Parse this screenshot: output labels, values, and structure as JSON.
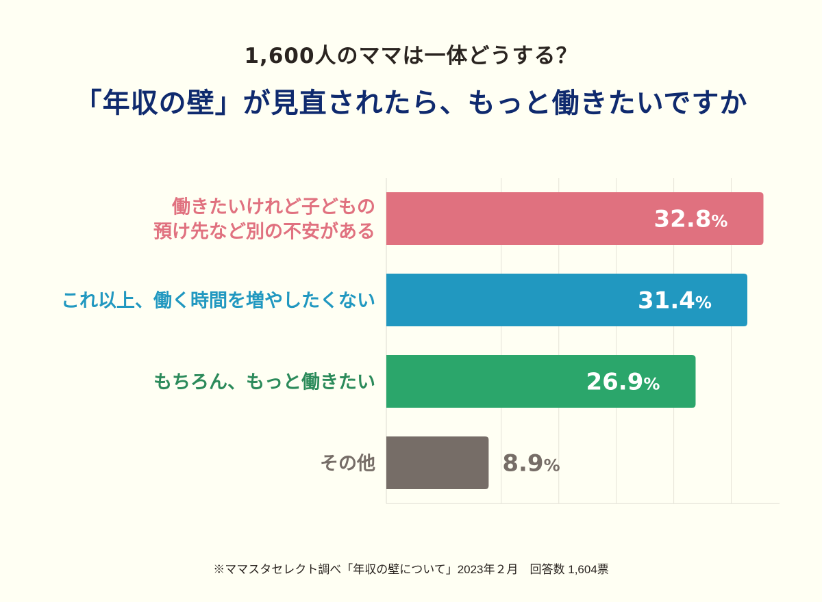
{
  "subtitle": "1,600人のママは一体どうする？",
  "title": "「年収の壁」が見直されたら、もっと働きたいですか",
  "footnote": "※ママスタセレクト調べ「年収の壁について」2023年２月　回答数 1,604票",
  "chart_data": {
    "type": "bar",
    "orientation": "horizontal",
    "title": "「年収の壁」が見直されたら、もっと働きたいですか",
    "subtitle": "1,600人のママは一体どうする？",
    "categories": [
      [
        "働きたいけれど子どもの",
        "預け先など別の不安がある"
      ],
      [
        "これ以上、働く時間を増やしたくない"
      ],
      [
        "もちろん、もっと働きたい"
      ],
      [
        "その他"
      ]
    ],
    "values": [
      32.8,
      31.4,
      26.9,
      8.9
    ],
    "data_labels": [
      "32.8",
      "31.4",
      "26.9",
      "8.9"
    ],
    "unit": "%",
    "colors": [
      "#e0717f",
      "#2198c0",
      "#2ba66b",
      "#766d67"
    ],
    "label_colors": [
      "#e0717f",
      "#2198c0",
      "#2b8a5a",
      "#766d67"
    ],
    "xlim": [
      0,
      34.2
    ],
    "grid": true,
    "gridlines_at": [
      10,
      15,
      20,
      25,
      30
    ]
  }
}
